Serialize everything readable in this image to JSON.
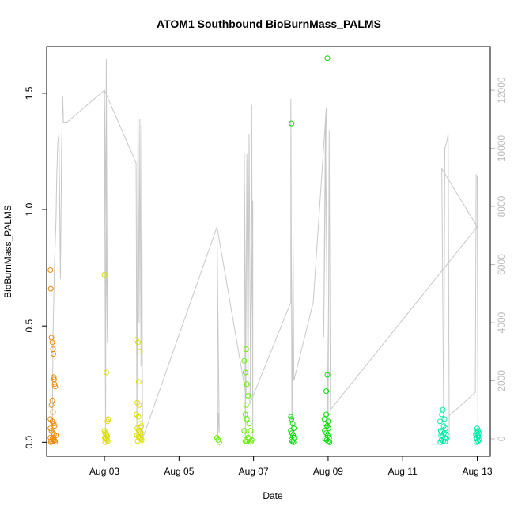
{
  "chart_data": {
    "type": "scatter",
    "title": "ATOM1 Southbound BioBurnMass_PALMS",
    "xlabel": "Date",
    "ylabel": "BioBurnMass_PALMS",
    "x_unit": "days (0 = Aug 01 00:00)",
    "xlim": [
      1.45,
      13.35
    ],
    "ylim": [
      -0.06,
      1.7
    ],
    "y2lim": [
      -600,
      13500
    ],
    "x_ticks": [
      {
        "value": 3,
        "label": "Aug 03"
      },
      {
        "value": 5,
        "label": "Aug 05"
      },
      {
        "value": 7,
        "label": "Aug 07"
      },
      {
        "value": 9,
        "label": "Aug 09"
      },
      {
        "value": 11,
        "label": "Aug 11"
      },
      {
        "value": 13,
        "label": "Aug 13"
      }
    ],
    "y_ticks": [
      {
        "value": 0.0,
        "label": "0.0"
      },
      {
        "value": 0.5,
        "label": "0.5"
      },
      {
        "value": 1.0,
        "label": "1.0"
      },
      {
        "value": 1.5,
        "label": "1.5"
      }
    ],
    "y2_ticks": [
      {
        "value": 0,
        "label": "0"
      },
      {
        "value": 2000,
        "label": "2000"
      },
      {
        "value": 4000,
        "label": "4000"
      },
      {
        "value": 6000,
        "label": "6000"
      },
      {
        "value": 8000,
        "label": "8000"
      },
      {
        "value": 10000,
        "label": "10000"
      },
      {
        "value": 12000,
        "label": "12000"
      }
    ],
    "grid": false,
    "line_color": "#c8c8c8",
    "altitude_line": [
      [
        1.6,
        0
      ],
      [
        1.62,
        3500
      ],
      [
        1.66,
        6000
      ],
      [
        1.7,
        7500
      ],
      [
        1.72,
        9000
      ],
      [
        1.75,
        10200
      ],
      [
        1.78,
        10500
      ],
      [
        1.82,
        5500
      ],
      [
        1.85,
        10000
      ],
      [
        1.88,
        11800
      ],
      [
        1.9,
        10900
      ],
      [
        2.0,
        10900
      ],
      [
        3.0,
        12000
      ],
      [
        3.03,
        0
      ],
      [
        3.05,
        13100
      ],
      [
        3.08,
        3300
      ],
      [
        3.0,
        12000
      ],
      [
        3.85,
        9500
      ],
      [
        3.87,
        0
      ],
      [
        3.9,
        11500
      ],
      [
        3.93,
        4000
      ],
      [
        3.95,
        11000
      ],
      [
        3.98,
        2500
      ],
      [
        4.0,
        10800
      ],
      [
        4.02,
        0
      ],
      [
        6.02,
        7300
      ],
      [
        6.04,
        0
      ],
      [
        6.06,
        900
      ],
      [
        6.08,
        200
      ],
      [
        6.02,
        7300
      ],
      [
        6.8,
        1500
      ],
      [
        6.75,
        9800
      ],
      [
        6.78,
        0
      ],
      [
        6.82,
        9800
      ],
      [
        6.85,
        1000
      ],
      [
        6.88,
        10500
      ],
      [
        6.92,
        1500
      ],
      [
        6.95,
        11500
      ],
      [
        6.98,
        0
      ],
      [
        6.98,
        8200
      ],
      [
        6.9,
        1200
      ],
      [
        8.0,
        4700
      ],
      [
        8.0,
        11700
      ],
      [
        8.03,
        0
      ],
      [
        8.06,
        7000
      ],
      [
        8.08,
        2000
      ],
      [
        8.6,
        4700
      ],
      [
        8.95,
        11400
      ],
      [
        8.88,
        3500
      ],
      [
        8.93,
        11000
      ],
      [
        9.0,
        0
      ],
      [
        9.03,
        10600
      ],
      [
        9.06,
        1000
      ],
      [
        9.06,
        1000
      ],
      [
        13.0,
        7300
      ],
      [
        12.05,
        9300
      ],
      [
        12.1,
        400
      ],
      [
        12.13,
        10000
      ],
      [
        12.18,
        10200
      ],
      [
        12.22,
        10500
      ],
      [
        12.25,
        0
      ],
      [
        12.25,
        800
      ],
      [
        12.95,
        1600
      ],
      [
        12.97,
        9100
      ],
      [
        13.0,
        9000
      ],
      [
        13.02,
        0
      ]
    ],
    "series": [
      {
        "color": "#ee8800",
        "points": [
          [
            1.55,
            0.74
          ],
          [
            1.56,
            0.66
          ],
          [
            1.58,
            0.45
          ],
          [
            1.6,
            0.43
          ],
          [
            1.62,
            0.4
          ],
          [
            1.63,
            0.38
          ],
          [
            1.64,
            0.28
          ],
          [
            1.65,
            0.27
          ],
          [
            1.66,
            0.25
          ],
          [
            1.68,
            0.24
          ],
          [
            1.6,
            0.18
          ],
          [
            1.58,
            0.16
          ],
          [
            1.62,
            0.13
          ],
          [
            1.55,
            0.1
          ],
          [
            1.6,
            0.09
          ],
          [
            1.64,
            0.08
          ],
          [
            1.66,
            0.07
          ],
          [
            1.55,
            0.06
          ],
          [
            1.58,
            0.05
          ],
          [
            1.62,
            0.04
          ],
          [
            1.65,
            0.035
          ],
          [
            1.7,
            0.03
          ],
          [
            1.55,
            0.02
          ],
          [
            1.6,
            0.015
          ],
          [
            1.63,
            0.01
          ],
          [
            1.66,
            0.008
          ],
          [
            1.58,
            0.005
          ],
          [
            1.62,
            0.003
          ],
          [
            1.68,
            0.002
          ],
          [
            1.56,
            0.0
          ]
        ]
      },
      {
        "color": "#dddd00",
        "points": [
          [
            3.0,
            0.72
          ],
          [
            3.05,
            0.3
          ],
          [
            3.1,
            0.1
          ],
          [
            3.08,
            0.09
          ],
          [
            3.0,
            0.05
          ],
          [
            3.02,
            0.04
          ],
          [
            3.04,
            0.035
          ],
          [
            3.06,
            0.03
          ],
          [
            3.08,
            0.025
          ],
          [
            3.01,
            0.02
          ],
          [
            3.03,
            0.015
          ],
          [
            3.07,
            0.01
          ],
          [
            3.09,
            0.005
          ],
          [
            3.02,
            0.0
          ],
          [
            3.85,
            0.44
          ],
          [
            3.9,
            0.43
          ],
          [
            3.95,
            0.39
          ],
          [
            3.92,
            0.26
          ],
          [
            3.88,
            0.17
          ],
          [
            3.93,
            0.16
          ],
          [
            3.86,
            0.12
          ],
          [
            3.91,
            0.11
          ],
          [
            3.96,
            0.08
          ],
          [
            3.99,
            0.07
          ],
          [
            3.88,
            0.06
          ],
          [
            3.92,
            0.05
          ],
          [
            3.95,
            0.045
          ],
          [
            3.98,
            0.04
          ],
          [
            3.87,
            0.03
          ],
          [
            3.91,
            0.025
          ],
          [
            3.94,
            0.02
          ],
          [
            3.97,
            0.015
          ],
          [
            4.0,
            0.01
          ],
          [
            3.89,
            0.005
          ],
          [
            3.96,
            0.002
          ]
        ]
      },
      {
        "color": "#66ee00",
        "points": [
          [
            6.02,
            0.02
          ],
          [
            6.05,
            0.01
          ],
          [
            6.08,
            0.0
          ],
          [
            6.8,
            0.4
          ],
          [
            6.75,
            0.35
          ],
          [
            6.78,
            0.3
          ],
          [
            6.82,
            0.25
          ],
          [
            6.85,
            0.2
          ],
          [
            6.8,
            0.16
          ],
          [
            6.78,
            0.12
          ],
          [
            6.82,
            0.1
          ],
          [
            6.88,
            0.08
          ],
          [
            6.92,
            0.05
          ],
          [
            6.75,
            0.05
          ],
          [
            6.8,
            0.03
          ],
          [
            6.85,
            0.02
          ],
          [
            6.9,
            0.015
          ],
          [
            6.95,
            0.01
          ],
          [
            6.78,
            0.005
          ],
          [
            6.83,
            0.003
          ],
          [
            6.88,
            0.002
          ],
          [
            6.93,
            0.001
          ]
        ]
      },
      {
        "color": "#00dd00",
        "points": [
          [
            8.02,
            1.37
          ],
          [
            8.98,
            1.65
          ],
          [
            8.98,
            0.29
          ],
          [
            8.95,
            0.22
          ],
          [
            8.0,
            0.11
          ],
          [
            8.02,
            0.1
          ],
          [
            8.05,
            0.08
          ],
          [
            8.08,
            0.06
          ],
          [
            8.0,
            0.05
          ],
          [
            8.03,
            0.04
          ],
          [
            8.06,
            0.03
          ],
          [
            8.09,
            0.02
          ],
          [
            8.01,
            0.01
          ],
          [
            8.04,
            0.005
          ],
          [
            8.07,
            0.0
          ],
          [
            8.95,
            0.12
          ],
          [
            8.9,
            0.1
          ],
          [
            9.0,
            0.09
          ],
          [
            8.93,
            0.08
          ],
          [
            8.97,
            0.07
          ],
          [
            9.01,
            0.06
          ],
          [
            8.91,
            0.05
          ],
          [
            8.95,
            0.04
          ],
          [
            8.99,
            0.03
          ],
          [
            9.03,
            0.02
          ],
          [
            8.92,
            0.015
          ],
          [
            8.96,
            0.01
          ],
          [
            9.0,
            0.005
          ],
          [
            9.04,
            0.0
          ]
        ]
      },
      {
        "color": "#00eeaa",
        "points": [
          [
            12.08,
            0.14
          ],
          [
            12.05,
            0.12
          ],
          [
            12.12,
            0.1
          ],
          [
            12.0,
            0.09
          ],
          [
            12.1,
            0.07
          ],
          [
            12.15,
            0.06
          ],
          [
            12.02,
            0.05
          ],
          [
            12.06,
            0.045
          ],
          [
            12.11,
            0.04
          ],
          [
            12.16,
            0.035
          ],
          [
            12.03,
            0.03
          ],
          [
            12.07,
            0.025
          ],
          [
            12.13,
            0.02
          ],
          [
            12.18,
            0.015
          ],
          [
            12.04,
            0.01
          ],
          [
            12.09,
            0.005
          ],
          [
            12.14,
            0.003
          ],
          [
            12.01,
            0.0
          ],
          [
            13.0,
            0.06
          ],
          [
            13.02,
            0.05
          ],
          [
            12.98,
            0.045
          ],
          [
            13.04,
            0.04
          ],
          [
            12.96,
            0.035
          ],
          [
            13.01,
            0.03
          ],
          [
            13.03,
            0.025
          ],
          [
            12.97,
            0.02
          ],
          [
            12.99,
            0.015
          ],
          [
            13.05,
            0.01
          ],
          [
            13.02,
            0.005
          ],
          [
            12.98,
            0.0
          ]
        ]
      }
    ]
  }
}
